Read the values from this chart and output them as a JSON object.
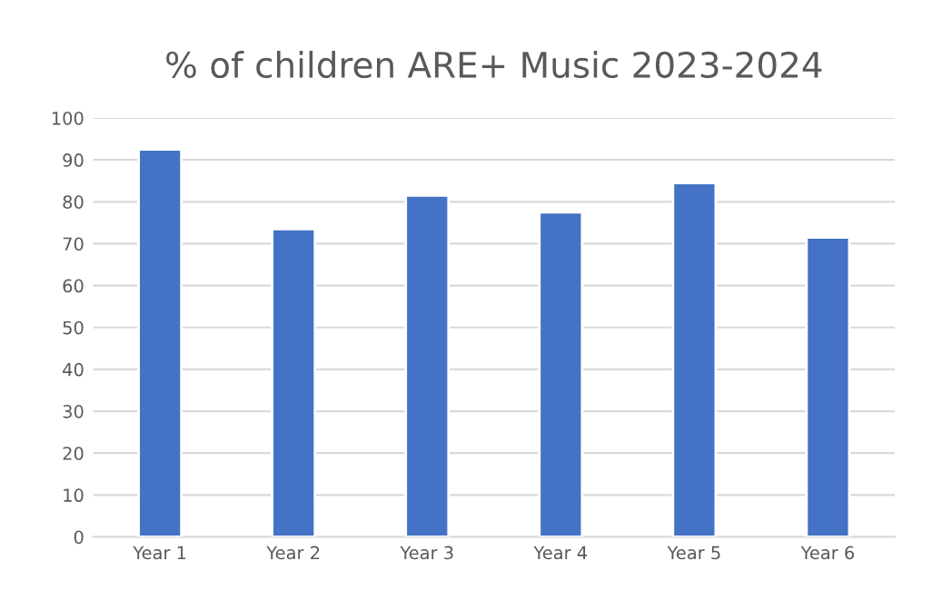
{
  "chart_data": {
    "type": "bar",
    "title": "% of children ARE+ Music 2023-2024",
    "categories": [
      "Year 1",
      "Year 2",
      "Year 3",
      "Year 4",
      "Year 5",
      "Year 6"
    ],
    "values": [
      92.5,
      73.5,
      81.5,
      77.5,
      84.5,
      71.5
    ],
    "color": "#4472c4",
    "ylim": [
      0,
      100
    ],
    "yticks": [
      0,
      10,
      20,
      30,
      40,
      50,
      60,
      70,
      80,
      90,
      100
    ],
    "grid": "y"
  }
}
